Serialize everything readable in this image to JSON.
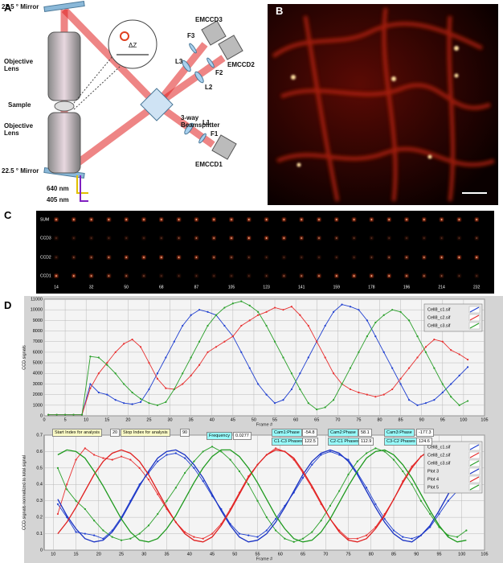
{
  "panels": {
    "a": {
      "label": "A",
      "mirror_top": "22.5 ° Mirror",
      "objective_top": "Objective Lens",
      "sample": "Sample",
      "objective_bottom": "Objective Lens",
      "mirror_bottom": "22.5 ° Mirror",
      "laser1": "640 nm",
      "laser2": "405 nm",
      "dz": "ΔZ",
      "emccd3": "EMCCD3",
      "f3": "F3",
      "l3": "L3",
      "emccd2": "EMCCD2",
      "f2": "F2",
      "l2": "L2",
      "splitter": "3-way Beamsplitter",
      "l1": "L1",
      "f1": "F1",
      "emccd1": "EMCCD1"
    },
    "b": {
      "label": "B"
    },
    "c": {
      "label": "C",
      "rows": [
        "SUM",
        "CCD3",
        "CCD2",
        "CCD1"
      ],
      "columns": [
        "14",
        "32",
        "50",
        "68",
        "87",
        "105",
        "123",
        "141",
        "159",
        "178",
        "196",
        "214",
        "232"
      ]
    },
    "d": {
      "label": "D",
      "controls": [
        {
          "label": "Start Index for analysis",
          "value": "20"
        },
        {
          "label": "Stop Index for analysis",
          "value": "90"
        },
        {
          "label": "Frequency",
          "value": "0.0277"
        },
        {
          "label": "Cam1:Phase",
          "value": "-54.8"
        },
        {
          "label": "Cam2:Phase",
          "value": "58.1"
        },
        {
          "label": "Cam3:Phase",
          "value": "-177.3"
        },
        {
          "label": "C1-C3 Phases",
          "value": "122.5"
        },
        {
          "label": "C2-C1 Phases",
          "value": "112.9"
        },
        {
          "label": "C3-C2 Phases",
          "value": "124.6"
        }
      ]
    }
  },
  "chart_data": [
    {
      "type": "line",
      "ylabel": "CCD signals",
      "xlabel": "Frame #",
      "grid": true,
      "legend": "upper right",
      "xlim": [
        0,
        105
      ],
      "ylim": [
        0,
        11000
      ],
      "xticks": [
        0,
        5,
        10,
        15,
        20,
        25,
        30,
        35,
        40,
        45,
        50,
        55,
        60,
        65,
        70,
        75,
        80,
        85,
        90,
        95,
        100,
        105
      ],
      "yticks": [
        0,
        1000,
        2000,
        3000,
        4000,
        5000,
        6000,
        7000,
        8000,
        9000,
        10000,
        11000
      ],
      "x": [
        1,
        3,
        5,
        7,
        9,
        11,
        13,
        15,
        17,
        19,
        21,
        23,
        25,
        27,
        29,
        31,
        33,
        35,
        37,
        39,
        41,
        43,
        45,
        47,
        49,
        51,
        53,
        55,
        57,
        59,
        61,
        63,
        65,
        67,
        69,
        71,
        73,
        75,
        77,
        79,
        81,
        83,
        85,
        87,
        89,
        91,
        93,
        95,
        97,
        99,
        101
      ],
      "series": [
        {
          "name": "Cell8_c1.sif",
          "color": "#1f3fd0",
          "marker": true,
          "values": [
            100,
            100,
            100,
            100,
            100,
            3000,
            2200,
            2000,
            1500,
            1200,
            1100,
            1300,
            2500,
            4000,
            5500,
            7000,
            8500,
            9500,
            10000,
            9800,
            9500,
            8500,
            7500,
            6000,
            4500,
            3000,
            2000,
            1200,
            1500,
            2500,
            4000,
            5500,
            7000,
            8500,
            9800,
            10500,
            10300,
            10000,
            9000,
            7500,
            6000,
            4500,
            3000,
            1500,
            1000,
            1200,
            1500,
            2200,
            3000,
            3800,
            4600
          ]
        },
        {
          "name": "Cell8_c2.sif",
          "color": "#e83030",
          "marker": true,
          "values": [
            100,
            100,
            100,
            100,
            100,
            2600,
            4000,
            5000,
            6000,
            6800,
            7200,
            6500,
            5000,
            3500,
            2600,
            2500,
            3000,
            3800,
            4800,
            6000,
            6500,
            7000,
            7500,
            8500,
            9000,
            9500,
            9800,
            10200,
            10000,
            10300,
            9500,
            8500,
            7000,
            5500,
            4000,
            3000,
            2500,
            2200,
            2000,
            1800,
            2000,
            2500,
            3500,
            4500,
            5500,
            6500,
            7200,
            7000,
            6200,
            5800,
            5300
          ]
        },
        {
          "name": "Cell8_c3.sif",
          "color": "#2aa02a",
          "marker": true,
          "values": [
            100,
            100,
            100,
            100,
            100,
            5600,
            5500,
            4800,
            4000,
            3000,
            2200,
            1600,
            1200,
            1000,
            1300,
            2500,
            4000,
            5500,
            7000,
            8500,
            9500,
            10200,
            10600,
            10800,
            10400,
            9800,
            8500,
            7000,
            5500,
            4000,
            2500,
            1200,
            600,
            800,
            1500,
            3000,
            4500,
            6000,
            7500,
            8800,
            9500,
            10000,
            9800,
            9000,
            7500,
            6000,
            4500,
            3000,
            1800,
            1000,
            1400
          ]
        }
      ]
    },
    {
      "type": "line",
      "ylabel": "CCD signals normalized to total signal",
      "xlabel": "Frame #",
      "grid": true,
      "legend": "upper right",
      "xlim": [
        8,
        105
      ],
      "ylim": [
        0,
        0.7
      ],
      "xticks": [
        10,
        15,
        20,
        25,
        30,
        35,
        40,
        45,
        50,
        55,
        60,
        65,
        70,
        75,
        80,
        85,
        90,
        95,
        100,
        105
      ],
      "yticks": [
        0,
        0.1,
        0.2,
        0.3,
        0.4,
        0.5,
        0.6,
        0.7
      ],
      "x": [
        11,
        13,
        15,
        17,
        19,
        21,
        23,
        25,
        27,
        29,
        31,
        33,
        35,
        37,
        39,
        41,
        43,
        45,
        47,
        49,
        51,
        53,
        55,
        57,
        59,
        61,
        63,
        65,
        67,
        69,
        71,
        73,
        75,
        77,
        79,
        81,
        83,
        85,
        87,
        89,
        91,
        93,
        95,
        97,
        99,
        101
      ],
      "series": [
        {
          "name": "Cell8_c1.sif",
          "color": "#1f3fd0",
          "marker": true,
          "values": [
            0.28,
            0.2,
            0.11,
            0.1,
            0.09,
            0.07,
            0.12,
            0.2,
            0.3,
            0.4,
            0.47,
            0.54,
            0.58,
            0.59,
            0.56,
            0.5,
            0.42,
            0.33,
            0.25,
            0.16,
            0.1,
            0.09,
            0.08,
            0.12,
            0.19,
            0.27,
            0.35,
            0.44,
            0.52,
            0.58,
            0.6,
            0.58,
            0.55,
            0.47,
            0.38,
            0.28,
            0.19,
            0.12,
            0.08,
            0.07,
            0.09,
            0.14,
            0.22,
            0.3,
            0.36,
            0.4
          ]
        },
        {
          "name": "Cell8_c2.sif",
          "color": "#e83030",
          "marker": true,
          "values": [
            0.22,
            0.4,
            0.55,
            0.62,
            0.58,
            0.56,
            0.55,
            0.57,
            0.55,
            0.5,
            0.43,
            0.34,
            0.25,
            0.17,
            0.11,
            0.08,
            0.07,
            0.1,
            0.16,
            0.25,
            0.35,
            0.45,
            0.52,
            0.58,
            0.62,
            0.6,
            0.55,
            0.47,
            0.38,
            0.28,
            0.19,
            0.12,
            0.07,
            0.07,
            0.09,
            0.14,
            0.22,
            0.31,
            0.42,
            0.51,
            0.57,
            0.6,
            0.59,
            0.55,
            0.5,
            0.52
          ]
        },
        {
          "name": "Cell8_c3.sif",
          "color": "#2aa02a",
          "marker": true,
          "values": [
            0.5,
            0.37,
            0.3,
            0.25,
            0.18,
            0.12,
            0.08,
            0.06,
            0.07,
            0.1,
            0.15,
            0.22,
            0.3,
            0.38,
            0.47,
            0.54,
            0.6,
            0.63,
            0.6,
            0.55,
            0.48,
            0.4,
            0.3,
            0.2,
            0.12,
            0.07,
            0.05,
            0.07,
            0.11,
            0.18,
            0.27,
            0.36,
            0.46,
            0.54,
            0.59,
            0.62,
            0.6,
            0.55,
            0.48,
            0.4,
            0.3,
            0.22,
            0.14,
            0.09,
            0.08,
            0.12
          ]
        },
        {
          "name": "Plot 3",
          "color": "#1a33c4",
          "marker": false,
          "values": [
            0.31,
            0.21,
            0.13,
            0.07,
            0.05,
            0.06,
            0.11,
            0.19,
            0.29,
            0.39,
            0.48,
            0.56,
            0.6,
            0.61,
            0.58,
            0.52,
            0.44,
            0.34,
            0.24,
            0.15,
            0.08,
            0.05,
            0.06,
            0.1,
            0.17,
            0.26,
            0.36,
            0.46,
            0.54,
            0.59,
            0.61,
            0.59,
            0.54,
            0.46,
            0.36,
            0.26,
            0.17,
            0.1,
            0.06,
            0.05,
            0.09,
            0.15,
            0.24,
            0.34,
            0.44,
            0.52
          ]
        },
        {
          "name": "Plot 4",
          "color": "#e02020",
          "marker": false,
          "values": [
            0.1,
            0.17,
            0.26,
            0.36,
            0.46,
            0.54,
            0.59,
            0.61,
            0.59,
            0.54,
            0.46,
            0.36,
            0.26,
            0.17,
            0.1,
            0.06,
            0.05,
            0.08,
            0.15,
            0.24,
            0.34,
            0.44,
            0.52,
            0.58,
            0.61,
            0.6,
            0.56,
            0.48,
            0.39,
            0.29,
            0.19,
            0.11,
            0.06,
            0.05,
            0.07,
            0.13,
            0.21,
            0.31,
            0.41,
            0.5,
            0.57,
            0.61,
            0.61,
            0.57,
            0.5,
            0.41
          ]
        },
        {
          "name": "Plot 5",
          "color": "#1e9a1e",
          "marker": false,
          "values": [
            0.58,
            0.61,
            0.6,
            0.56,
            0.48,
            0.39,
            0.29,
            0.19,
            0.11,
            0.06,
            0.05,
            0.07,
            0.13,
            0.21,
            0.31,
            0.41,
            0.5,
            0.57,
            0.61,
            0.61,
            0.57,
            0.5,
            0.41,
            0.31,
            0.21,
            0.13,
            0.07,
            0.05,
            0.06,
            0.11,
            0.19,
            0.29,
            0.39,
            0.48,
            0.56,
            0.6,
            0.61,
            0.58,
            0.52,
            0.44,
            0.34,
            0.24,
            0.15,
            0.08,
            0.05,
            0.06
          ]
        }
      ]
    }
  ]
}
